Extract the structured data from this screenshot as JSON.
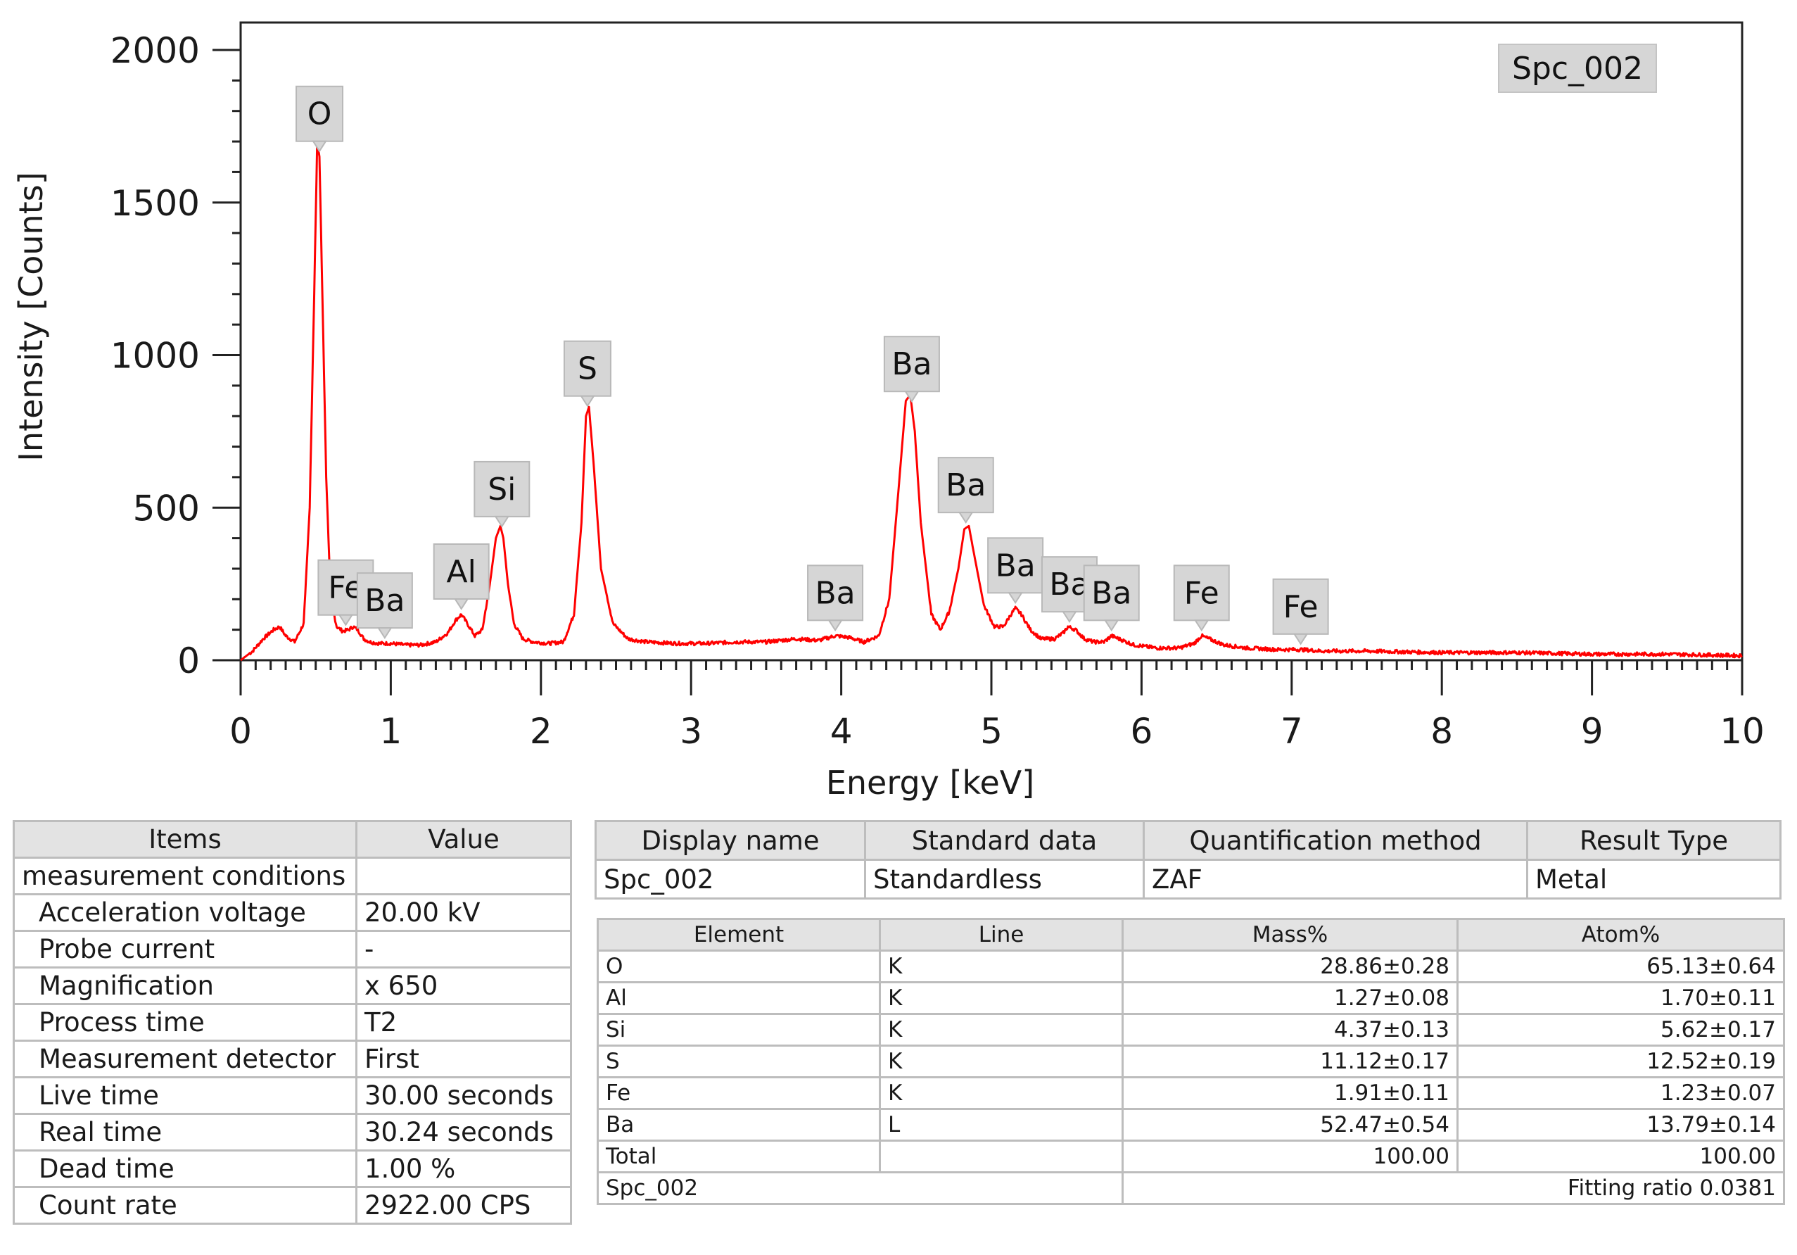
{
  "chart_data": {
    "type": "line",
    "title": "",
    "xlabel": "Energy [keV]",
    "ylabel": "Intensity [Counts]",
    "xlim": [
      0,
      10
    ],
    "ylim": [
      0,
      2000
    ],
    "x_ticks": [
      0,
      1,
      2,
      3,
      4,
      5,
      6,
      7,
      8,
      9,
      10
    ],
    "y_ticks": [
      0,
      500,
      1000,
      1500,
      2000
    ],
    "grid": false,
    "legend": "Spc_002",
    "legend_position": "top-right",
    "series": [
      {
        "name": "Spc_002",
        "color": "#ff0000",
        "x": [
          0,
          0.08,
          0.15,
          0.22,
          0.26,
          0.3,
          0.36,
          0.42,
          0.46,
          0.49,
          0.51,
          0.525,
          0.54,
          0.57,
          0.6,
          0.64,
          0.68,
          0.72,
          0.75,
          0.78,
          0.82,
          0.86,
          0.92,
          1.0,
          1.1,
          1.2,
          1.3,
          1.38,
          1.43,
          1.47,
          1.51,
          1.56,
          1.61,
          1.66,
          1.7,
          1.73,
          1.75,
          1.78,
          1.82,
          1.88,
          1.95,
          2.05,
          2.15,
          2.22,
          2.27,
          2.3,
          2.32,
          2.35,
          2.4,
          2.48,
          2.58,
          2.7,
          2.9,
          3.1,
          3.3,
          3.5,
          3.7,
          3.85,
          3.96,
          4.05,
          4.15,
          4.25,
          4.32,
          4.38,
          4.43,
          4.46,
          4.49,
          4.53,
          4.6,
          4.66,
          4.72,
          4.78,
          4.82,
          4.85,
          4.88,
          4.95,
          5.02,
          5.08,
          5.13,
          5.16,
          5.2,
          5.26,
          5.33,
          5.42,
          5.48,
          5.51,
          5.56,
          5.62,
          5.68,
          5.75,
          5.8,
          5.85,
          5.95,
          6.1,
          6.25,
          6.35,
          6.4,
          6.45,
          6.55,
          6.7,
          6.9,
          7.06,
          7.2,
          7.5,
          8.0,
          8.5,
          9.0,
          9.5,
          10.0
        ],
        "values": [
          0,
          30,
          70,
          100,
          110,
          80,
          60,
          120,
          500,
          1200,
          1700,
          1650,
          1300,
          600,
          200,
          110,
          95,
          100,
          110,
          100,
          70,
          60,
          55,
          55,
          50,
          50,
          60,
          90,
          130,
          150,
          120,
          80,
          100,
          250,
          400,
          440,
          400,
          250,
          120,
          70,
          60,
          55,
          60,
          150,
          450,
          800,
          830,
          650,
          300,
          120,
          70,
          60,
          55,
          55,
          60,
          60,
          70,
          65,
          80,
          75,
          60,
          80,
          200,
          550,
          850,
          870,
          750,
          450,
          150,
          100,
          160,
          300,
          430,
          440,
          360,
          180,
          110,
          110,
          150,
          170,
          150,
          100,
          70,
          70,
          90,
          110,
          100,
          70,
          60,
          60,
          80,
          70,
          50,
          40,
          40,
          55,
          80,
          70,
          50,
          40,
          35,
          35,
          30,
          30,
          25,
          25,
          20,
          20,
          15
        ]
      }
    ],
    "peak_labels": [
      {
        "element": "O",
        "x": 0.525
      },
      {
        "element": "Fe",
        "x": 0.7
      },
      {
        "element": "Ba",
        "x": 0.96
      },
      {
        "element": "Al",
        "x": 1.47
      },
      {
        "element": "Si",
        "x": 1.74
      },
      {
        "element": "S",
        "x": 2.31
      },
      {
        "element": "Ba",
        "x": 3.96
      },
      {
        "element": "Ba",
        "x": 4.47
      },
      {
        "element": "Ba",
        "x": 4.83
      },
      {
        "element": "Ba",
        "x": 5.16
      },
      {
        "element": "Ba",
        "x": 5.52
      },
      {
        "element": "Ba",
        "x": 5.8
      },
      {
        "element": "Fe",
        "x": 6.4
      },
      {
        "element": "Fe",
        "x": 7.06
      }
    ]
  },
  "conditions_table": {
    "headers": [
      "Items",
      "Value"
    ],
    "group_label": "measurement conditions",
    "rows": [
      {
        "item": "Acceleration voltage",
        "value": "20.00 kV"
      },
      {
        "item": "Probe current",
        "value": "-"
      },
      {
        "item": "Magnification",
        "value": "x 650"
      },
      {
        "item": "Process time",
        "value": "T2"
      },
      {
        "item": "Measurement detector",
        "value": "First"
      },
      {
        "item": "Live time",
        "value": "30.00 seconds"
      },
      {
        "item": "Real time",
        "value": "30.24 seconds"
      },
      {
        "item": "Dead time",
        "value": "1.00 %"
      },
      {
        "item": "Count rate",
        "value": "2922.00 CPS"
      }
    ]
  },
  "info_table": {
    "headers": [
      "Display name",
      "Standard data",
      "Quantification method",
      "Result Type"
    ],
    "row": [
      "Spc_002",
      "Standardless",
      "ZAF",
      "Metal"
    ]
  },
  "quant_table": {
    "headers": [
      "Element",
      "Line",
      "Mass%",
      "Atom%"
    ],
    "rows": [
      {
        "element": "O",
        "line": "K",
        "mass": "28.86±0.28",
        "atom": "65.13±0.64"
      },
      {
        "element": "Al",
        "line": "K",
        "mass": "1.27±0.08",
        "atom": "1.70±0.11"
      },
      {
        "element": "Si",
        "line": "K",
        "mass": "4.37±0.13",
        "atom": "5.62±0.17"
      },
      {
        "element": "S",
        "line": "K",
        "mass": "11.12±0.17",
        "atom": "12.52±0.19"
      },
      {
        "element": "Fe",
        "line": "K",
        "mass": "1.91±0.11",
        "atom": "1.23±0.07"
      },
      {
        "element": "Ba",
        "line": "L",
        "mass": "52.47±0.54",
        "atom": "13.79±0.14"
      },
      {
        "element": "Total",
        "line": "",
        "mass": "100.00",
        "atom": "100.00"
      }
    ],
    "footer_left": "Spc_002",
    "footer_right": "Fitting ratio 0.0381"
  }
}
